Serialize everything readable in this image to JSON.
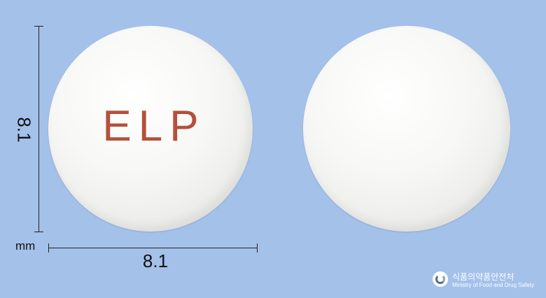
{
  "imprint": "ELP",
  "dimensions": {
    "height": "8.1",
    "width": "8.1",
    "unit": "mm"
  },
  "logo": {
    "korean": "식품의약품안전처",
    "english": "Ministry of Food and Drug Safety"
  },
  "colors": {
    "background": "#a4c1ea",
    "tablet": "#f4f4f2",
    "imprint": "#b4503c"
  }
}
